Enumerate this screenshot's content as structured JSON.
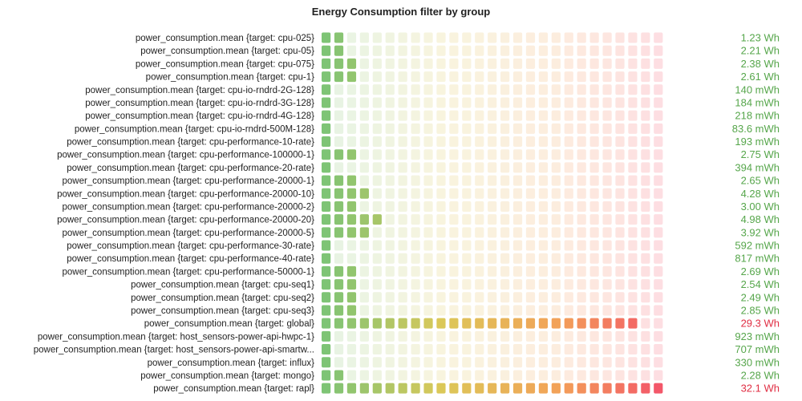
{
  "chart_data": {
    "type": "bar",
    "title": "Energy Consumption filter by group",
    "unit": "Wh",
    "scale_max_wh": 32.1,
    "cells_per_bar": 27,
    "colors": {
      "green": "#73bf69",
      "yellow": "#d9c34a",
      "orange": "#f2994a",
      "red": "#f2495c",
      "value_green": "#56a64b",
      "value_red": "#e02f44"
    },
    "categories": [
      "power_consumption.mean {target: cpu-025}",
      "power_consumption.mean {target: cpu-05}",
      "power_consumption.mean {target: cpu-075}",
      "power_consumption.mean {target: cpu-1}",
      "power_consumption.mean {target: cpu-io-rndrd-2G-128}",
      "power_consumption.mean {target: cpu-io-rndrd-3G-128}",
      "power_consumption.mean {target: cpu-io-rndrd-4G-128}",
      "power_consumption.mean {target: cpu-io-rndrd-500M-128}",
      "power_consumption.mean {target: cpu-performance-10-rate}",
      "power_consumption.mean {target: cpu-performance-100000-1}",
      "power_consumption.mean {target: cpu-performance-20-rate}",
      "power_consumption.mean {target: cpu-performance-20000-1}",
      "power_consumption.mean {target: cpu-performance-20000-10}",
      "power_consumption.mean {target: cpu-performance-20000-2}",
      "power_consumption.mean {target: cpu-performance-20000-20}",
      "power_consumption.mean {target: cpu-performance-20000-5}",
      "power_consumption.mean {target: cpu-performance-30-rate}",
      "power_consumption.mean {target: cpu-performance-40-rate}",
      "power_consumption.mean {target: cpu-performance-50000-1}",
      "power_consumption.mean {target: cpu-seq1}",
      "power_consumption.mean {target: cpu-seq2}",
      "power_consumption.mean {target: cpu-seq3}",
      "power_consumption.mean {target: global}",
      "power_consumption.mean {target: host_sensors-power-api-hwpc-1}",
      "power_consumption.mean {target: host_sensors-power-api-smartw...",
      "power_consumption.mean {target: influx}",
      "power_consumption.mean {target: mongo}",
      "power_consumption.mean {target: rapl}"
    ],
    "values_wh": [
      1.23,
      2.21,
      2.38,
      2.61,
      0.14,
      0.184,
      0.218,
      0.0836,
      0.193,
      2.75,
      0.394,
      2.65,
      4.28,
      3.0,
      4.98,
      3.92,
      0.592,
      0.817,
      2.69,
      2.54,
      2.49,
      2.85,
      29.3,
      0.923,
      0.707,
      0.33,
      2.28,
      32.1
    ],
    "value_labels": [
      "1.23 Wh",
      "2.21 Wh",
      "2.38 Wh",
      "2.61 Wh",
      "140 mWh",
      "184 mWh",
      "218 mWh",
      "83.6 mWh",
      "193 mWh",
      "2.75 Wh",
      "394 mWh",
      "2.65 Wh",
      "4.28 Wh",
      "3.00 Wh",
      "4.98 Wh",
      "3.92 Wh",
      "592 mWh",
      "817 mWh",
      "2.69 Wh",
      "2.54 Wh",
      "2.49 Wh",
      "2.85 Wh",
      "29.3 Wh",
      "923 mWh",
      "707 mWh",
      "330 mWh",
      "2.28 Wh",
      "32.1 Wh"
    ],
    "value_label_colors": [
      "green",
      "green",
      "green",
      "green",
      "green",
      "green",
      "green",
      "green",
      "green",
      "green",
      "green",
      "green",
      "green",
      "green",
      "green",
      "green",
      "green",
      "green",
      "green",
      "green",
      "green",
      "green",
      "red",
      "green",
      "green",
      "green",
      "green",
      "red"
    ]
  }
}
